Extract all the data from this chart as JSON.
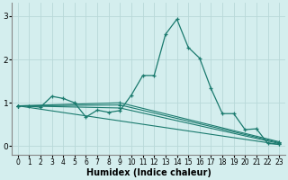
{
  "xlabel": "Humidex (Indice chaleur)",
  "bg_color": "#d4eeee",
  "grid_color": "#b8d8d8",
  "line_color": "#1a7a6e",
  "xlim": [
    -0.5,
    23.5
  ],
  "ylim": [
    -0.2,
    3.3
  ],
  "yticks": [
    0,
    1,
    2,
    3
  ],
  "xticks": [
    0,
    1,
    2,
    3,
    4,
    5,
    6,
    7,
    8,
    9,
    10,
    11,
    12,
    13,
    14,
    15,
    16,
    17,
    18,
    19,
    20,
    21,
    22,
    23
  ],
  "series0_x": [
    0,
    1,
    2,
    3,
    4,
    5,
    6,
    7,
    8,
    9,
    10,
    11,
    12,
    13,
    14,
    15,
    16,
    17,
    18,
    19,
    20,
    21,
    22,
    23
  ],
  "series0_y": [
    0.93,
    0.92,
    0.9,
    1.15,
    1.1,
    1.0,
    0.67,
    0.83,
    0.78,
    0.82,
    1.18,
    1.63,
    1.63,
    2.58,
    2.93,
    2.28,
    2.03,
    1.33,
    0.75,
    0.75,
    0.38,
    0.4,
    0.06,
    0.04
  ],
  "series1_x": [
    0,
    23
  ],
  "series1_y": [
    0.93,
    0.04
  ],
  "series2_x": [
    0,
    9,
    23
  ],
  "series2_y": [
    0.93,
    0.88,
    0.06
  ],
  "series3_x": [
    0,
    9,
    23
  ],
  "series3_y": [
    0.93,
    0.95,
    0.08
  ],
  "series4_x": [
    0,
    9,
    23
  ],
  "series4_y": [
    0.93,
    1.0,
    0.1
  ]
}
